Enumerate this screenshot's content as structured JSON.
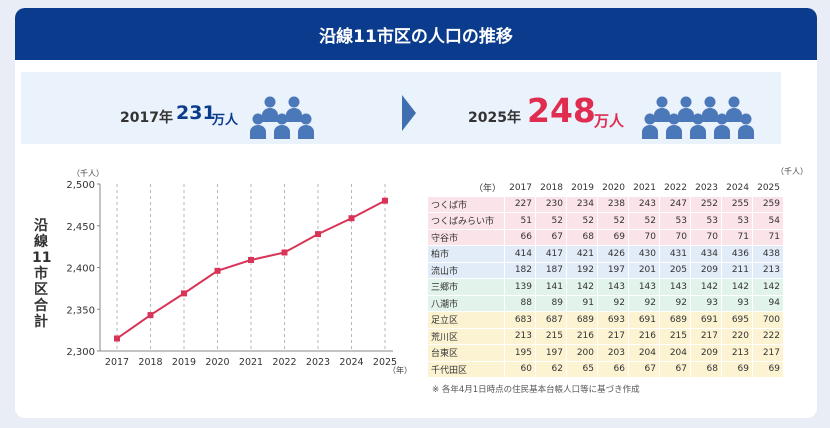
{
  "header": {
    "title": "沿線11市区の人口の推移"
  },
  "summary": {
    "year_2017": "2017年",
    "pop_2017": "231",
    "unit_2017": "万人",
    "year_2025": "2025年",
    "pop_2025": "248",
    "unit_2025": "万人",
    "icon_count_2017": 5,
    "icon_count_2025": 9,
    "arrow_icon": "right-arrow-icon",
    "people_icon": "person-group-icon"
  },
  "colors": {
    "header": "#0a3b8c",
    "line": "#d93457",
    "highlight": "#e02c4f",
    "icon": "#4a78b8"
  },
  "chart_data": {
    "type": "line",
    "ylabel_vertical": "沿線11市区合計",
    "y_unit": "（千人）",
    "x_unit": "（年）",
    "x": [
      "2017",
      "2018",
      "2019",
      "2020",
      "2021",
      "2022",
      "2023",
      "2024",
      "2025"
    ],
    "series": [
      {
        "values": [
          2315,
          2343,
          2369,
          2396,
          2409,
          2418,
          2440,
          2459,
          2480
        ]
      }
    ],
    "ylim": [
      2300,
      2500
    ],
    "yticks": [
      "2,300",
      "2,350",
      "2,400",
      "2,450",
      "2,500"
    ],
    "grid_x": "dashed"
  },
  "table": {
    "unit": "（千人）",
    "corner": "（年）",
    "years": [
      "2017",
      "2018",
      "2019",
      "2020",
      "2021",
      "2022",
      "2023",
      "2024",
      "2025"
    ],
    "rows": [
      {
        "name": "つくば市",
        "group": "pink",
        "values": [
          "227",
          "230",
          "234",
          "238",
          "243",
          "247",
          "252",
          "255",
          "259"
        ]
      },
      {
        "name": "つくばみらい市",
        "group": "pink",
        "values": [
          "51",
          "52",
          "52",
          "52",
          "52",
          "53",
          "53",
          "53",
          "54"
        ]
      },
      {
        "name": "守谷市",
        "group": "pink",
        "values": [
          "66",
          "67",
          "68",
          "69",
          "70",
          "70",
          "70",
          "71",
          "71"
        ]
      },
      {
        "name": "柏市",
        "group": "blue",
        "values": [
          "414",
          "417",
          "421",
          "426",
          "430",
          "431",
          "434",
          "436",
          "438"
        ]
      },
      {
        "name": "流山市",
        "group": "blue",
        "values": [
          "182",
          "187",
          "192",
          "197",
          "201",
          "205",
          "209",
          "211",
          "213"
        ]
      },
      {
        "name": "三郷市",
        "group": "green",
        "values": [
          "139",
          "141",
          "142",
          "143",
          "143",
          "143",
          "142",
          "142",
          "142"
        ]
      },
      {
        "name": "八潮市",
        "group": "green",
        "values": [
          "88",
          "89",
          "91",
          "92",
          "92",
          "92",
          "93",
          "93",
          "94"
        ]
      },
      {
        "name": "足立区",
        "group": "yellow",
        "values": [
          "683",
          "687",
          "689",
          "693",
          "691",
          "689",
          "691",
          "695",
          "700"
        ]
      },
      {
        "name": "荒川区",
        "group": "yellow",
        "values": [
          "213",
          "215",
          "216",
          "217",
          "216",
          "215",
          "217",
          "220",
          "222"
        ]
      },
      {
        "name": "台東区",
        "group": "yellow",
        "values": [
          "195",
          "197",
          "200",
          "203",
          "204",
          "204",
          "209",
          "213",
          "217"
        ]
      },
      {
        "name": "千代田区",
        "group": "yellow",
        "values": [
          "60",
          "62",
          "65",
          "66",
          "67",
          "67",
          "68",
          "69",
          "69"
        ]
      }
    ],
    "group_colors": {
      "pink": "#fbe3ea",
      "blue": "#e1ecf8",
      "green": "#e1f3ea",
      "yellow": "#fbf3d2"
    }
  },
  "note": "※ 各年4月1日時点の住民基本台帳人口等に基づき作成"
}
